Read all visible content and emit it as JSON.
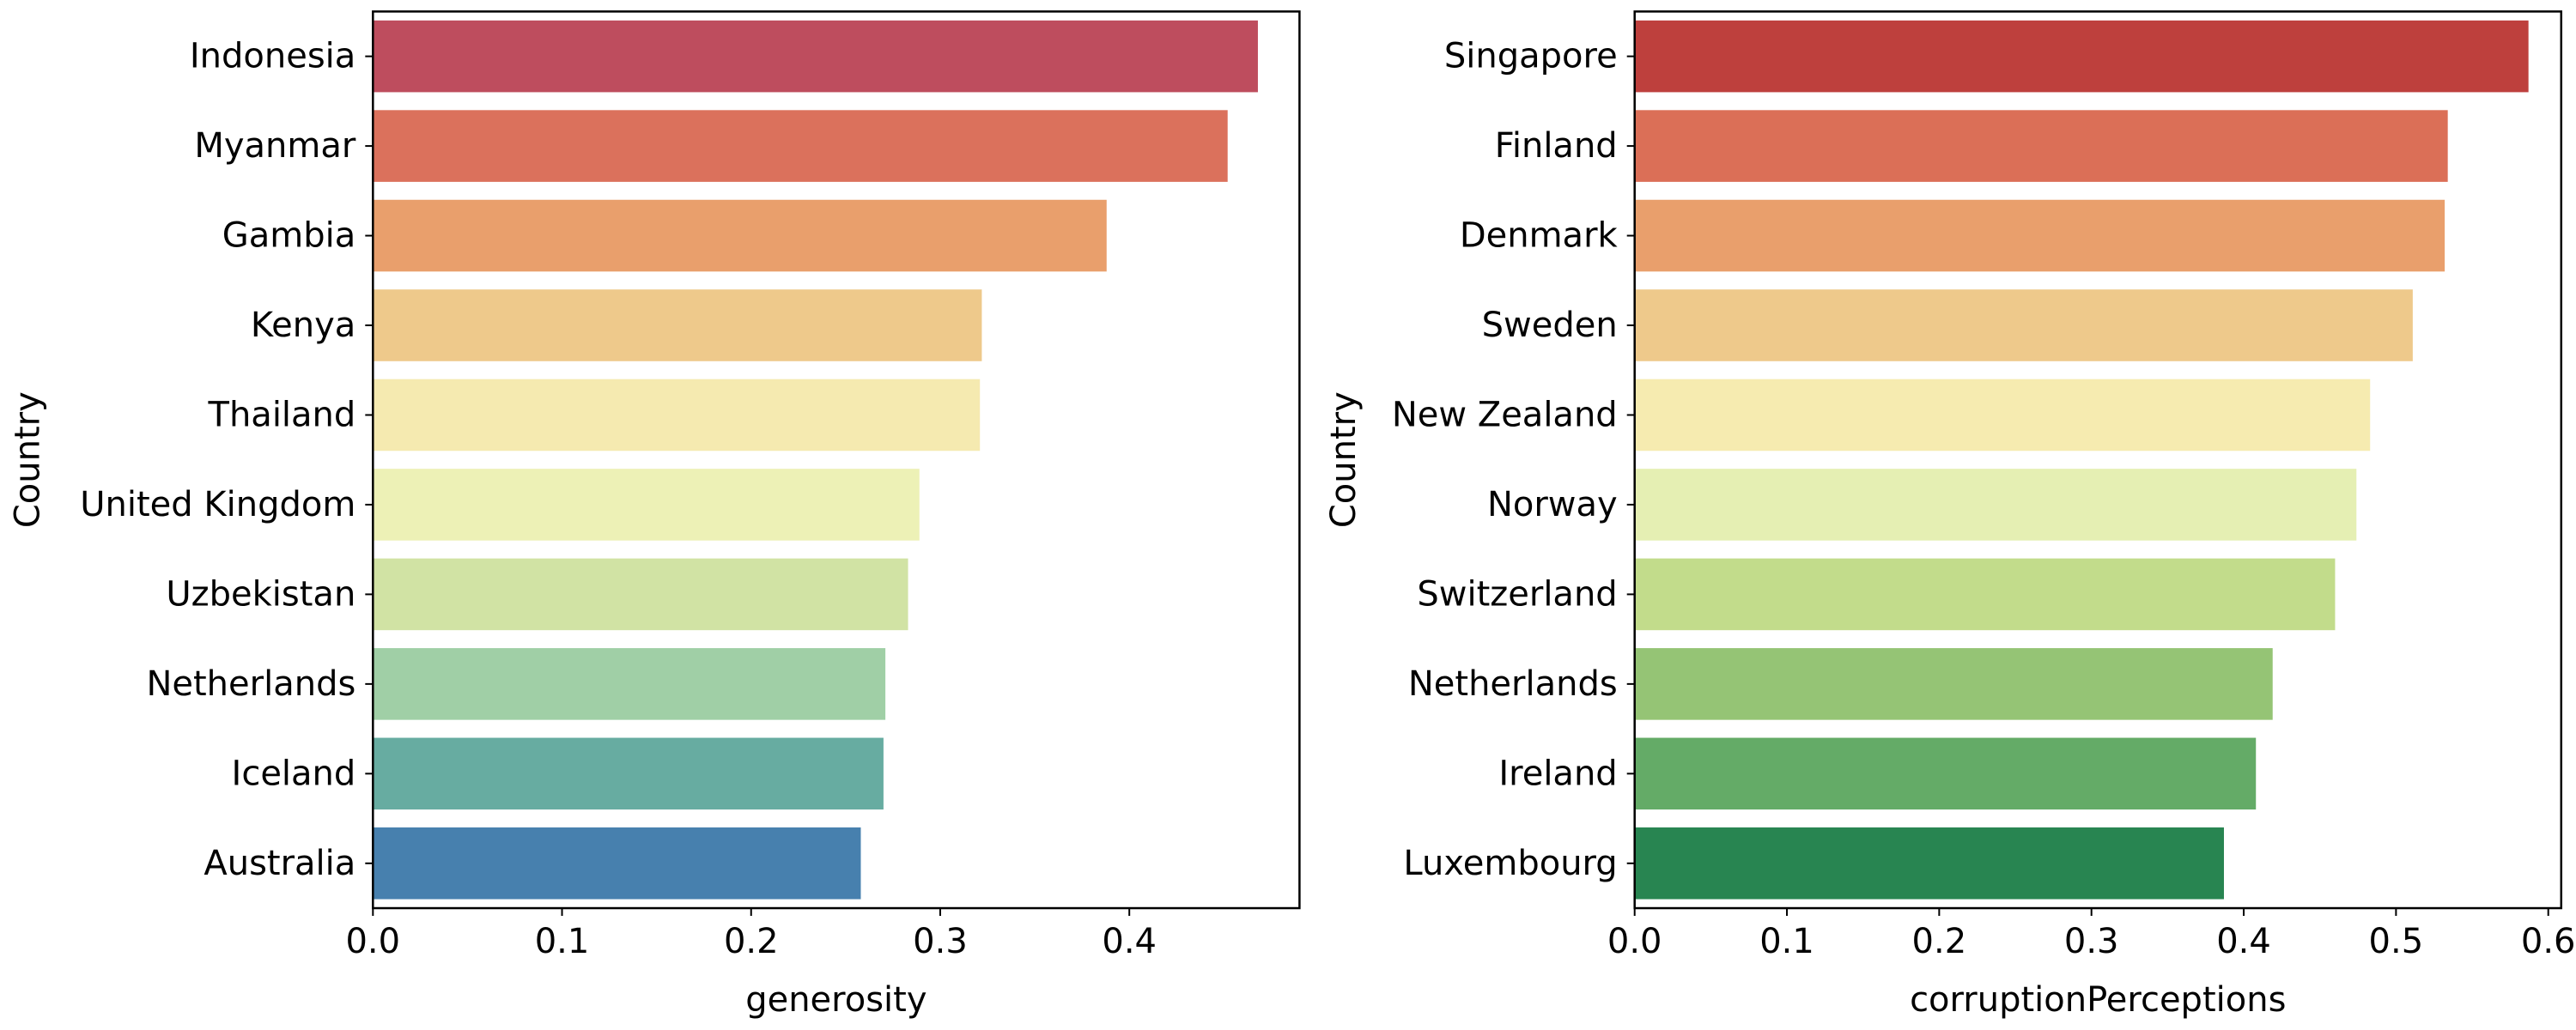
{
  "chart_data": [
    {
      "type": "bar",
      "orientation": "horizontal",
      "categories": [
        "Indonesia",
        "Myanmar",
        "Gambia",
        "Kenya",
        "Thailand",
        "United Kingdom",
        "Uzbekistan",
        "Netherlands",
        "Iceland",
        "Australia"
      ],
      "values": [
        0.468,
        0.452,
        0.388,
        0.322,
        0.321,
        0.289,
        0.283,
        0.271,
        0.27,
        0.258
      ],
      "colors": [
        "#be4d5e",
        "#db715c",
        "#e99f6c",
        "#eec98b",
        "#f5eab0",
        "#edf1b6",
        "#d1e3a4",
        "#a0cfa6",
        "#67aca1",
        "#4780ae"
      ],
      "xlabel": "generosity",
      "ylabel": "Country",
      "xlim": [
        0,
        0.49
      ],
      "xticks": [
        "0.0",
        "0.1",
        "0.2",
        "0.3",
        "0.4"
      ],
      "grid": false
    },
    {
      "type": "bar",
      "orientation": "horizontal",
      "categories": [
        "Singapore",
        "Finland",
        "Denmark",
        "Sweden",
        "New Zealand",
        "Norway",
        "Switzerland",
        "Netherlands",
        "Ireland",
        "Luxembourg"
      ],
      "values": [
        0.587,
        0.534,
        0.532,
        0.511,
        0.483,
        0.474,
        0.46,
        0.419,
        0.408,
        0.387
      ],
      "colors": [
        "#be403d",
        "#db6f57",
        "#e99f6c",
        "#eec98b",
        "#f6ebb0",
        "#e5efb3",
        "#c2dc8b",
        "#95c475",
        "#64ab67",
        "#288551"
      ],
      "xlabel": "corruptionPerceptions",
      "ylabel": "Country",
      "xlim": [
        0,
        0.6085
      ],
      "xticks": [
        "0.0",
        "0.1",
        "0.2",
        "0.3",
        "0.4",
        "0.5",
        "0.6"
      ],
      "grid": false
    }
  ]
}
